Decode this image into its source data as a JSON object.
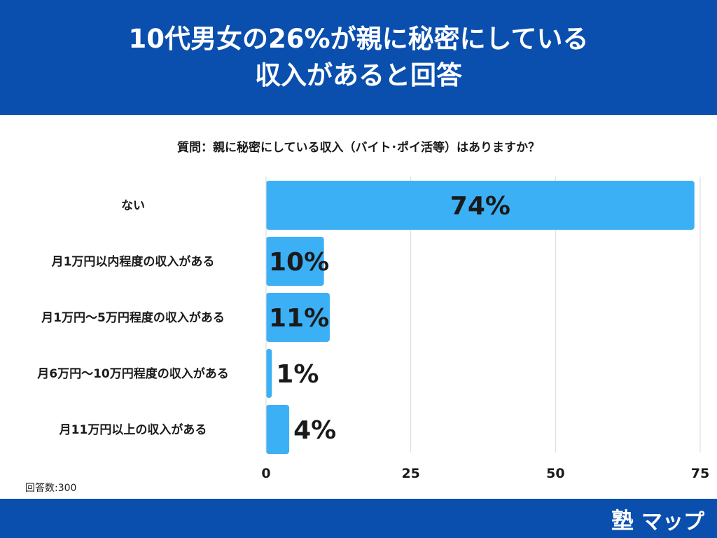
{
  "header": {
    "title_line1": "10代男女の26%が親に秘密にしている",
    "title_line2": "収入があると回答"
  },
  "question": "質問：親に秘密にしている収入（バイト･ポイ活等）はありますか？",
  "footnote": "回答数:300",
  "logo": {
    "kanji": "塾",
    "text": "マップ"
  },
  "colors": {
    "header_bg": "#0a4fae",
    "bar": "#3cb0f5",
    "grid": "#d9d9d9",
    "text": "#1a1a1a"
  },
  "chart_data": {
    "type": "bar",
    "orientation": "horizontal",
    "title": "質問：親に秘密にしている収入（バイト･ポイ活等）はありますか？",
    "categories": [
      "ない",
      "月1万円以内程度の収入がある",
      "月1万円〜5万円程度の収入がある",
      "月6万円〜10万円程度の収入がある",
      "月11万円以上の収入がある"
    ],
    "values": [
      74,
      10,
      11,
      1,
      4
    ],
    "data_labels": [
      "74%",
      "10%",
      "11%",
      "1%",
      "4%"
    ],
    "xlim": [
      0,
      75
    ],
    "xticks": [
      0,
      25,
      50,
      75
    ],
    "grid": true,
    "legend": "none"
  }
}
